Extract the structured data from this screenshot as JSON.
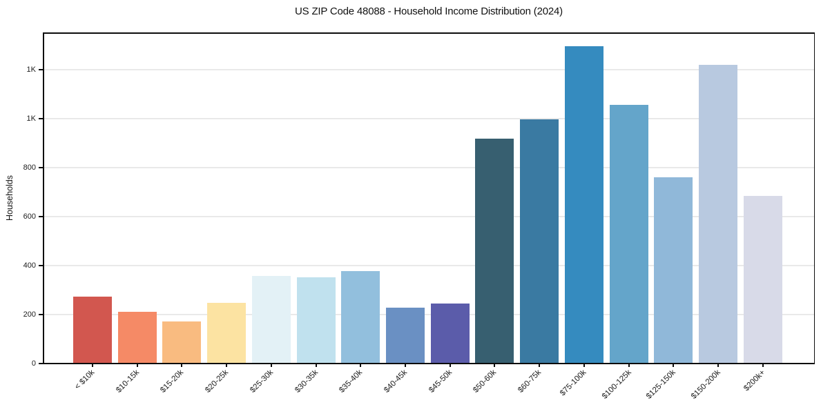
{
  "chart_data": {
    "type": "bar",
    "title": "US ZIP Code 48088 - Household Income Distribution (2024)",
    "xlabel": "",
    "ylabel": "Households",
    "categories": [
      "< $10k",
      "$10-15k",
      "$15-20k",
      "$20-25k",
      "$25-30k",
      "$30-35k",
      "$35-40k",
      "$40-45k",
      "$45-50k",
      "$50-60k",
      "$60-75k",
      "$75-100k",
      "$100-125k",
      "$125-150k",
      "$150-200k",
      "$200k+"
    ],
    "values": [
      272,
      210,
      173,
      249,
      358,
      353,
      377,
      229,
      246,
      918,
      998,
      1295,
      1057,
      761,
      1219,
      685
    ],
    "bar_colors": [
      "#d2574f",
      "#f58a66",
      "#f9bb80",
      "#fce3a2",
      "#e3f1f6",
      "#c0e1ee",
      "#92bfdd",
      "#6a90c3",
      "#5b5caa",
      "#375f70",
      "#3a7aa2",
      "#358bbf",
      "#64a5ca",
      "#90b8d9",
      "#b8c9e0",
      "#d8dae8"
    ],
    "ylim": [
      0,
      1352
    ],
    "yticks": {
      "values": [
        0,
        200,
        400,
        600,
        800,
        1000,
        1200
      ],
      "labels": [
        "0",
        "200",
        "400",
        "600",
        "800",
        "1K",
        "1K"
      ]
    },
    "grid": "horizontal",
    "legend": "none",
    "background_color": "#ffffff",
    "gridline_color": "#e9e9e9",
    "spine_color": "#0c0c0c",
    "text_color": "#1a1a1a"
  }
}
